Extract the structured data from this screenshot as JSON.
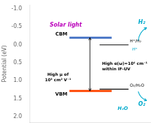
{
  "chart_data": {
    "type": "band_diagram",
    "ylabel": "Potential (eV)",
    "ylim": [
      2.15,
      -1.1
    ],
    "yticks": [
      {
        "value": -1.0,
        "label": "-1.0"
      },
      {
        "value": -0.5,
        "label": "-0.5"
      },
      {
        "value": 0.0,
        "label": "0.0"
      },
      0.5,
      {
        "value": 1.0,
        "label": "1.0"
      },
      1.5,
      {
        "value": 2.0,
        "label": "2.0"
      }
    ],
    "grid": false,
    "tick_labels": "y",
    "series": [
      {
        "name": "CBM",
        "color": "#4472C4",
        "values": [
          -0.2
        ]
      },
      {
        "name": "VBM",
        "color": "#FF4500",
        "values": [
          1.28
        ]
      },
      {
        "name": "H⁺/H₂",
        "color": "#000000",
        "values": [
          0.0
        ]
      },
      {
        "name": "O₂/H₂O",
        "color": "#000000",
        "values": [
          1.23
        ]
      }
    ],
    "annotations": [
      {
        "text": "H⁺",
        "color": "#00AACC"
      },
      {
        "text": "High α(ω)≈10⁶ cm⁻¹\nwithin IF-UV",
        "color": "#000000"
      },
      {
        "text": "High μ of\n10³ cm² V⁻¹",
        "color": "#000000"
      },
      {
        "text": "H₂",
        "color": "#00AACC"
      },
      {
        "text": "O₂",
        "color": "#00AACC"
      },
      {
        "text": "H₂O",
        "color": "#00AACC"
      },
      {
        "text": "Solar light",
        "color": "#BB00BB"
      }
    ]
  }
}
